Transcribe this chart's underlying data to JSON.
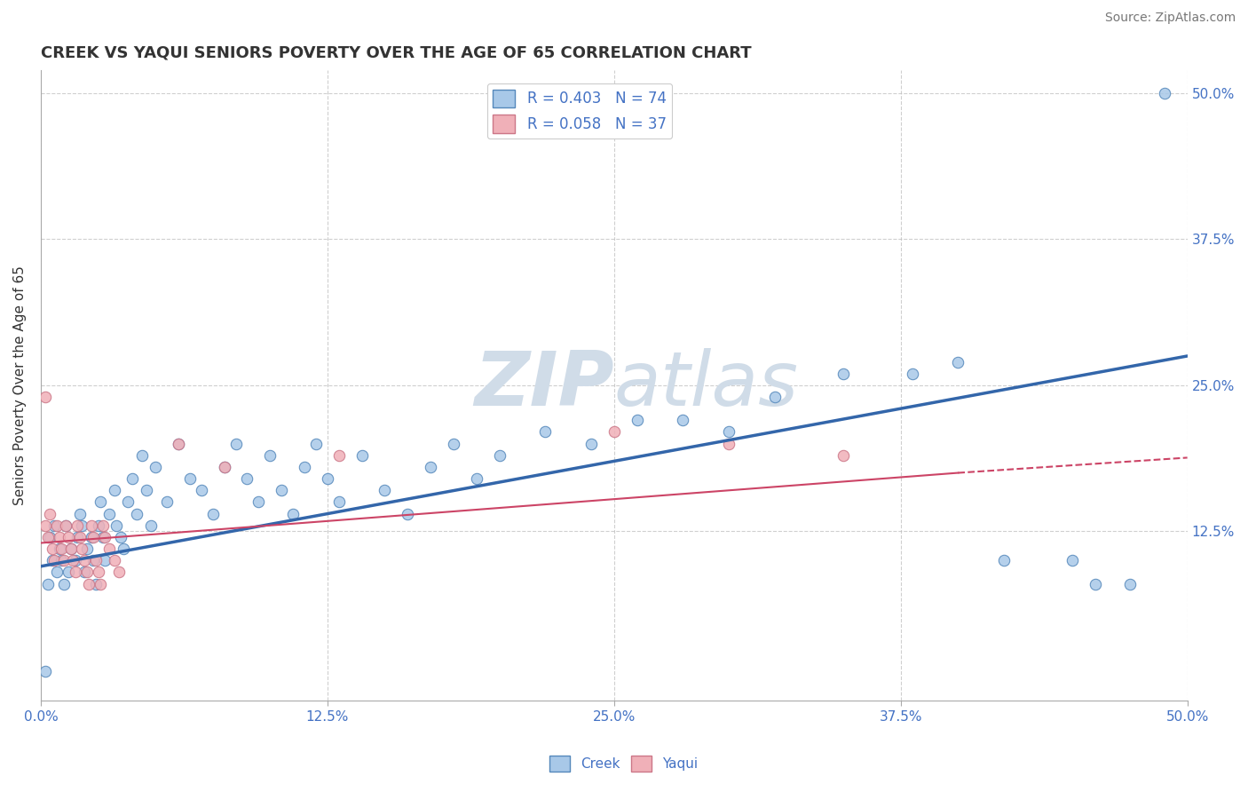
{
  "title": "CREEK VS YAQUI SENIORS POVERTY OVER THE AGE OF 65 CORRELATION CHART",
  "source_text": "Source: ZipAtlas.com",
  "ylabel": "Seniors Poverty Over the Age of 65",
  "xlim": [
    0.0,
    0.5
  ],
  "ylim": [
    -0.02,
    0.52
  ],
  "xtick_labels": [
    "0.0%",
    "12.5%",
    "25.0%",
    "37.5%",
    "50.0%"
  ],
  "xtick_vals": [
    0.0,
    0.125,
    0.25,
    0.375,
    0.5
  ],
  "ytick_labels_right": [
    "12.5%",
    "25.0%",
    "37.5%",
    "50.0%"
  ],
  "ytick_vals_right": [
    0.125,
    0.25,
    0.375,
    0.5
  ],
  "grid_color": "#bbbbbb",
  "watermark_zip": "ZIP",
  "watermark_atlas": "atlas",
  "watermark_color": "#d0dce8",
  "background_color": "#ffffff",
  "creek_color": "#a8c8e8",
  "creek_edge_color": "#5588bb",
  "yaqui_color": "#f0b0b8",
  "yaqui_edge_color": "#cc7788",
  "creek_line_color": "#3366aa",
  "yaqui_line_color": "#cc4466",
  "creek_R": 0.403,
  "creek_N": 74,
  "yaqui_R": 0.058,
  "yaqui_N": 37,
  "creek_scatter": [
    [
      0.002,
      0.005
    ],
    [
      0.003,
      0.08
    ],
    [
      0.004,
      0.12
    ],
    [
      0.005,
      0.1
    ],
    [
      0.006,
      0.13
    ],
    [
      0.007,
      0.09
    ],
    [
      0.008,
      0.11
    ],
    [
      0.009,
      0.1
    ],
    [
      0.01,
      0.08
    ],
    [
      0.011,
      0.13
    ],
    [
      0.012,
      0.09
    ],
    [
      0.013,
      0.11
    ],
    [
      0.015,
      0.1
    ],
    [
      0.016,
      0.12
    ],
    [
      0.017,
      0.14
    ],
    [
      0.018,
      0.13
    ],
    [
      0.019,
      0.09
    ],
    [
      0.02,
      0.11
    ],
    [
      0.022,
      0.12
    ],
    [
      0.023,
      0.1
    ],
    [
      0.024,
      0.08
    ],
    [
      0.025,
      0.13
    ],
    [
      0.026,
      0.15
    ],
    [
      0.027,
      0.12
    ],
    [
      0.028,
      0.1
    ],
    [
      0.03,
      0.14
    ],
    [
      0.032,
      0.16
    ],
    [
      0.033,
      0.13
    ],
    [
      0.035,
      0.12
    ],
    [
      0.036,
      0.11
    ],
    [
      0.038,
      0.15
    ],
    [
      0.04,
      0.17
    ],
    [
      0.042,
      0.14
    ],
    [
      0.044,
      0.19
    ],
    [
      0.046,
      0.16
    ],
    [
      0.048,
      0.13
    ],
    [
      0.05,
      0.18
    ],
    [
      0.055,
      0.15
    ],
    [
      0.06,
      0.2
    ],
    [
      0.065,
      0.17
    ],
    [
      0.07,
      0.16
    ],
    [
      0.075,
      0.14
    ],
    [
      0.08,
      0.18
    ],
    [
      0.085,
      0.2
    ],
    [
      0.09,
      0.17
    ],
    [
      0.095,
      0.15
    ],
    [
      0.1,
      0.19
    ],
    [
      0.105,
      0.16
    ],
    [
      0.11,
      0.14
    ],
    [
      0.115,
      0.18
    ],
    [
      0.12,
      0.2
    ],
    [
      0.125,
      0.17
    ],
    [
      0.13,
      0.15
    ],
    [
      0.14,
      0.19
    ],
    [
      0.15,
      0.16
    ],
    [
      0.16,
      0.14
    ],
    [
      0.17,
      0.18
    ],
    [
      0.18,
      0.2
    ],
    [
      0.19,
      0.17
    ],
    [
      0.2,
      0.19
    ],
    [
      0.22,
      0.21
    ],
    [
      0.24,
      0.2
    ],
    [
      0.26,
      0.22
    ],
    [
      0.28,
      0.22
    ],
    [
      0.3,
      0.21
    ],
    [
      0.32,
      0.24
    ],
    [
      0.35,
      0.26
    ],
    [
      0.38,
      0.26
    ],
    [
      0.4,
      0.27
    ],
    [
      0.42,
      0.1
    ],
    [
      0.45,
      0.1
    ],
    [
      0.46,
      0.08
    ],
    [
      0.475,
      0.08
    ],
    [
      0.49,
      0.5
    ]
  ],
  "yaqui_scatter": [
    [
      0.002,
      0.13
    ],
    [
      0.003,
      0.12
    ],
    [
      0.004,
      0.14
    ],
    [
      0.005,
      0.11
    ],
    [
      0.006,
      0.1
    ],
    [
      0.007,
      0.13
    ],
    [
      0.008,
      0.12
    ],
    [
      0.009,
      0.11
    ],
    [
      0.01,
      0.1
    ],
    [
      0.011,
      0.13
    ],
    [
      0.012,
      0.12
    ],
    [
      0.013,
      0.11
    ],
    [
      0.014,
      0.1
    ],
    [
      0.015,
      0.09
    ],
    [
      0.016,
      0.13
    ],
    [
      0.017,
      0.12
    ],
    [
      0.018,
      0.11
    ],
    [
      0.019,
      0.1
    ],
    [
      0.02,
      0.09
    ],
    [
      0.021,
      0.08
    ],
    [
      0.022,
      0.13
    ],
    [
      0.023,
      0.12
    ],
    [
      0.024,
      0.1
    ],
    [
      0.025,
      0.09
    ],
    [
      0.026,
      0.08
    ],
    [
      0.027,
      0.13
    ],
    [
      0.028,
      0.12
    ],
    [
      0.03,
      0.11
    ],
    [
      0.032,
      0.1
    ],
    [
      0.034,
      0.09
    ],
    [
      0.002,
      0.24
    ],
    [
      0.06,
      0.2
    ],
    [
      0.08,
      0.18
    ],
    [
      0.13,
      0.19
    ],
    [
      0.25,
      0.21
    ],
    [
      0.3,
      0.2
    ],
    [
      0.35,
      0.19
    ]
  ],
  "creek_trend_x": [
    0.0,
    0.5
  ],
  "creek_trend_y": [
    0.095,
    0.275
  ],
  "yaqui_trend_x": [
    0.0,
    0.4
  ],
  "yaqui_trend_y": [
    0.115,
    0.175
  ],
  "title_fontsize": 13,
  "source_fontsize": 10,
  "axis_label_fontsize": 11,
  "tick_fontsize": 11,
  "legend_fontsize": 12,
  "title_color": "#333333",
  "tick_color": "#4472c4",
  "legend_text_color_black": "#333333"
}
